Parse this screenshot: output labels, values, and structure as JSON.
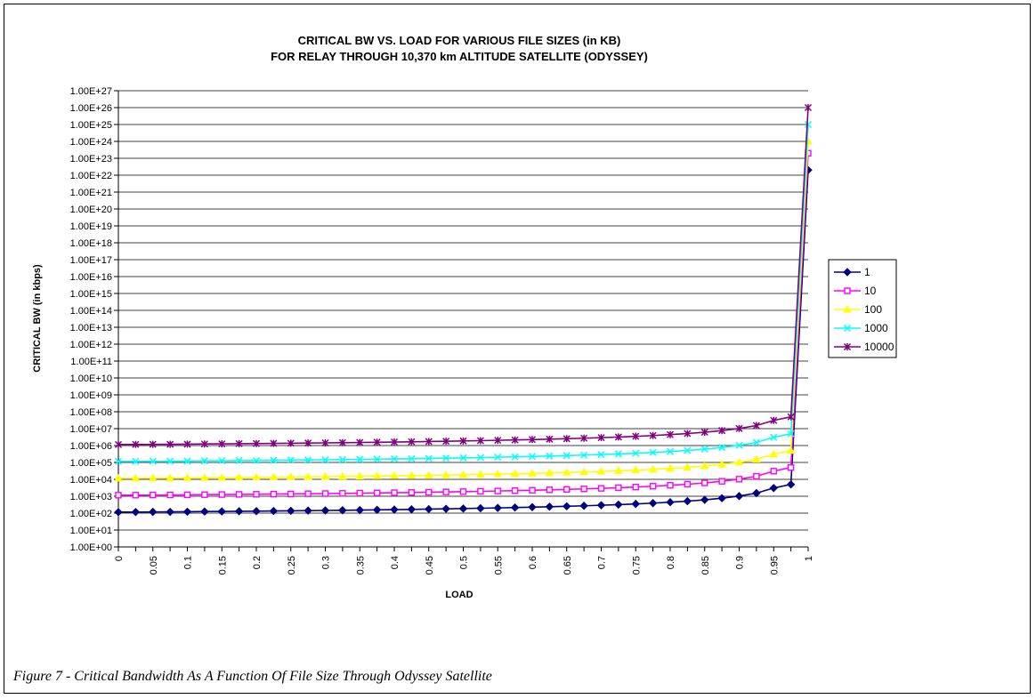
{
  "caption": "Figure 7 - Critical Bandwidth As A Function Of File Size Through Odyssey Satellite",
  "chart_data": {
    "type": "line",
    "title": "CRITICAL BW VS. LOAD FOR VARIOUS FILE SIZES (in KB)",
    "subtitle": "FOR RELAY THROUGH 10,370 km ALTITUDE SATELLITE (ODYSSEY)",
    "xlabel": "LOAD",
    "ylabel": "CRITICAL BW (in kbps)",
    "y_scale": "log",
    "ylim": [
      1,
      1e+27
    ],
    "xlim": [
      0,
      1
    ],
    "grid": "horizontal",
    "legend_position": "right",
    "x_tick_labels": [
      "0",
      "0.05",
      "0.1",
      "0.15",
      "0.2",
      "0.25",
      "0.3",
      "0.35",
      "0.4",
      "0.45",
      "0.5",
      "0.55",
      "0.6",
      "0.65",
      "0.7",
      "0.75",
      "0.8",
      "0.85",
      "0.9",
      "0.95",
      "1"
    ],
    "y_tick_labels": [
      "1.00E+00",
      "1.00E+01",
      "1.00E+02",
      "1.00E+03",
      "1.00E+04",
      "1.00E+05",
      "1.00E+06",
      "1.00E+07",
      "1.00E+08",
      "1.00E+09",
      "1.00E+10",
      "1.00E+11",
      "1.00E+12",
      "1.00E+13",
      "1.00E+14",
      "1.00E+15",
      "1.00E+16",
      "1.00E+17",
      "1.00E+18",
      "1.00E+19",
      "1.00E+20",
      "1.00E+21",
      "1.00E+22",
      "1.00E+23",
      "1.00E+24",
      "1.00E+25",
      "1.00E+26",
      "1.00E+27"
    ],
    "x": [
      0,
      0.025,
      0.05,
      0.075,
      0.1,
      0.125,
      0.15,
      0.175,
      0.2,
      0.225,
      0.25,
      0.275,
      0.3,
      0.325,
      0.35,
      0.375,
      0.4,
      0.425,
      0.45,
      0.475,
      0.5,
      0.525,
      0.55,
      0.575,
      0.6,
      0.625,
      0.65,
      0.675,
      0.7,
      0.725,
      0.75,
      0.775,
      0.8,
      0.825,
      0.85,
      0.875,
      0.9,
      0.925,
      0.95,
      0.975,
      1
    ],
    "series": [
      {
        "name": "1",
        "color": "#000080",
        "marker": "diamond",
        "values": [
          115,
          116,
          118,
          119,
          121,
          124,
          126,
          129,
          131,
          134,
          137,
          141,
          144,
          148,
          152,
          157,
          162,
          167,
          173,
          180,
          187,
          195,
          204,
          214,
          226,
          239,
          254,
          272,
          293,
          319,
          351,
          391,
          443,
          514,
          614,
          765,
          1020,
          1530,
          3060,
          5000,
          2e+22
        ]
      },
      {
        "name": "10",
        "color": "#ff00ff",
        "marker": "square",
        "values": [
          1150,
          1160,
          1180,
          1190,
          1210,
          1240,
          1260,
          1290,
          1310,
          1340,
          1370,
          1410,
          1440,
          1480,
          1520,
          1570,
          1620,
          1670,
          1730,
          1800,
          1870,
          1950,
          2040,
          2140,
          2260,
          2390,
          2540,
          2720,
          2930,
          3190,
          3510,
          3910,
          4430,
          5140,
          6140,
          7650,
          10200,
          15300,
          30600,
          50000,
          2e+23
        ]
      },
      {
        "name": "100",
        "color": "#ffff00",
        "marker": "triangle",
        "values": [
          11500,
          11600,
          11800,
          11900,
          12100,
          12400,
          12600,
          12900,
          13100,
          13400,
          13700,
          14100,
          14400,
          14800,
          15200,
          15700,
          16200,
          16700,
          17300,
          18000,
          18700,
          19500,
          20400,
          21400,
          22600,
          23900,
          25400,
          27200,
          29300,
          31900,
          35100,
          39100,
          44300,
          51400,
          61400,
          76500,
          102000,
          153000,
          306000,
          500000,
          1e+24
        ]
      },
      {
        "name": "1000",
        "color": "#00ffff",
        "marker": "x",
        "values": [
          115000,
          116000,
          118000,
          119000,
          121000,
          124000,
          126000,
          129000,
          131000,
          134000,
          137000,
          141000,
          144000,
          148000,
          152000,
          157000,
          162000,
          167000,
          173000,
          180000,
          187000,
          195000,
          204000,
          214000,
          226000,
          239000,
          254000,
          272000,
          293000,
          319000,
          351000,
          391000,
          443000,
          514000,
          614000,
          765000,
          1020000,
          1530000,
          3060000,
          5000000,
          1e+25
        ]
      },
      {
        "name": "10000",
        "color": "#800080",
        "marker": "star",
        "values": [
          1150000,
          1160000,
          1180000,
          1190000,
          1210000,
          1240000,
          1260000,
          1290000,
          1310000,
          1340000,
          1370000,
          1410000,
          1440000,
          1480000,
          1520000,
          1570000,
          1620000,
          1670000,
          1730000,
          1800000,
          1870000,
          1950000,
          2040000,
          2140000,
          2260000,
          2390000,
          2540000,
          2720000,
          2930000,
          3190000,
          3510000,
          3910000,
          4430000,
          5140000,
          6140000,
          7650000,
          10200000,
          15300000,
          30600000,
          50000000,
          1e+26
        ]
      }
    ]
  }
}
